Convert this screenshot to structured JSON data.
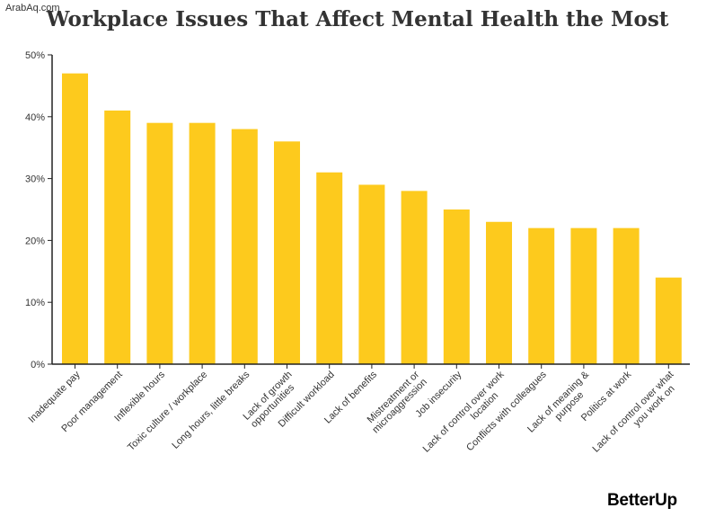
{
  "watermark": "ArabAq.com",
  "brand": "BetterUp",
  "colors": {
    "bar": "#fdca1d",
    "axis": "#222222",
    "text": "#333333"
  },
  "chart_data": {
    "type": "bar",
    "title": "Workplace Issues That Affect Mental Health the Most",
    "xlabel": "",
    "ylabel": "",
    "ylim": [
      0,
      50
    ],
    "y_ticks": [
      "0%",
      "10%",
      "20%",
      "30%",
      "40%",
      "50%"
    ],
    "y_tick_values": [
      0,
      10,
      20,
      30,
      40,
      50
    ],
    "categories": [
      [
        "Inadequate pay"
      ],
      [
        "Poor management"
      ],
      [
        "Inflexible hours"
      ],
      [
        "Toxic culture / workplace"
      ],
      [
        "Long hours, little breaks"
      ],
      [
        "Lack of growth",
        "opportunities"
      ],
      [
        "Difficult workload"
      ],
      [
        "Lack of benefits"
      ],
      [
        "Mistreatment or",
        "microaggression"
      ],
      [
        "Job insecurity"
      ],
      [
        "Lack of control over work",
        "location"
      ],
      [
        "Conflicts with colleagues"
      ],
      [
        "Lack of meaning &",
        "purpose"
      ],
      [
        "Politics at work"
      ],
      [
        "Lack of control over what",
        "you work on"
      ]
    ],
    "values": [
      47,
      41,
      39,
      39,
      38,
      36,
      31,
      29,
      28,
      25,
      23,
      22,
      22,
      22,
      14
    ],
    "grid": false,
    "legend": "none"
  }
}
